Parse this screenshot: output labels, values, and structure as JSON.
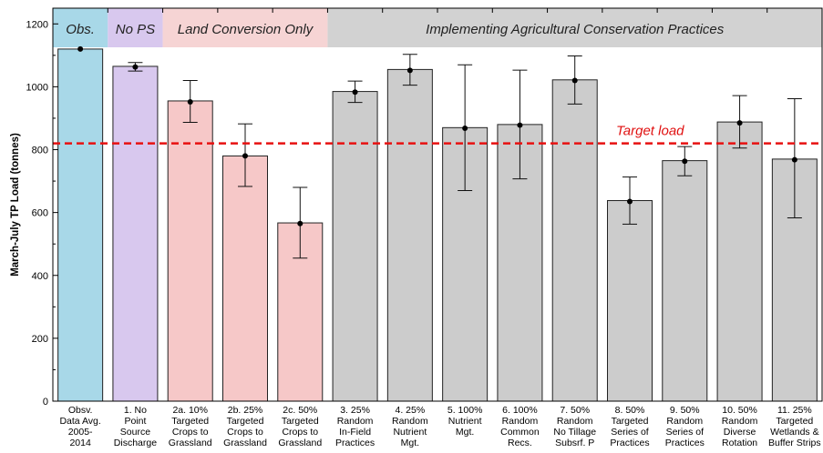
{
  "chart_data": {
    "type": "bar",
    "ylabel": "March-July TP Load (tonnes)",
    "ylim": [
      0,
      1250
    ],
    "yticks": [
      0,
      200,
      400,
      600,
      800,
      1000,
      1200
    ],
    "grid": false,
    "target": {
      "label": "Target load",
      "value": 820,
      "color": "#e81010"
    },
    "bands": [
      {
        "label": "Obs.",
        "from": 0,
        "to": 0,
        "color": "#a8d8e8"
      },
      {
        "label": "No PS",
        "from": 1,
        "to": 1,
        "color": "#d8c8ee"
      },
      {
        "label": "Land Conversion Only",
        "from": 2,
        "to": 4,
        "color": "#f6d4d4"
      },
      {
        "label": "Implementing Agricultural Conservation Practices",
        "from": 5,
        "to": 13,
        "color": "#d2d2d2"
      }
    ],
    "categories": [
      [
        "Obsv.",
        "Data Avg.",
        "2005-",
        "2014"
      ],
      [
        "1. No",
        "Point",
        "Source",
        "Discharge"
      ],
      [
        "2a. 10%",
        "Targeted",
        "Crops to",
        "Grassland"
      ],
      [
        "2b. 25%",
        "Targeted",
        "Crops to",
        "Grassland"
      ],
      [
        "2c. 50%",
        "Targeted",
        "Crops to",
        "Grassland"
      ],
      [
        "3. 25%",
        "Random",
        "In-Field",
        "Practices"
      ],
      [
        "4. 25%",
        "Random",
        "Nutrient",
        "Mgt."
      ],
      [
        "5. 100%",
        "Nutrient",
        "Mgt."
      ],
      [
        "6. 100%",
        "Random",
        "Common",
        "Recs."
      ],
      [
        "7. 50%",
        "Random",
        "No Tillage",
        "Subsrf. P"
      ],
      [
        "8. 50%",
        "Targeted",
        "Series of",
        "Practices"
      ],
      [
        "9. 50%",
        "Random",
        "Series of",
        "Practices"
      ],
      [
        "10. 50%",
        "Random",
        "Diverse",
        "Rotation"
      ],
      [
        "11. 25%",
        "Targeted",
        "Wetlands &",
        "Buffer Strips"
      ]
    ],
    "values": [
      1120,
      1065,
      955,
      780,
      567,
      985,
      1055,
      870,
      880,
      1022,
      638,
      765,
      888,
      770
    ],
    "points": [
      1120,
      1063,
      952,
      780,
      565,
      983,
      1052,
      868,
      878,
      1020,
      635,
      763,
      885,
      768
    ],
    "err_low": [
      1120,
      1050,
      887,
      683,
      455,
      950,
      1005,
      670,
      707,
      945,
      563,
      717,
      805,
      583
    ],
    "err_high": [
      1120,
      1077,
      1020,
      882,
      680,
      1018,
      1103,
      1070,
      1053,
      1098,
      713,
      810,
      972,
      962
    ],
    "bar_colors": [
      "#a8d8e8",
      "#d8c8ee",
      "#f6c8c8",
      "#f6c8c8",
      "#f6c8c8",
      "#cccccc",
      "#cccccc",
      "#cccccc",
      "#cccccc",
      "#cccccc",
      "#cccccc",
      "#cccccc",
      "#cccccc",
      "#cccccc"
    ]
  }
}
